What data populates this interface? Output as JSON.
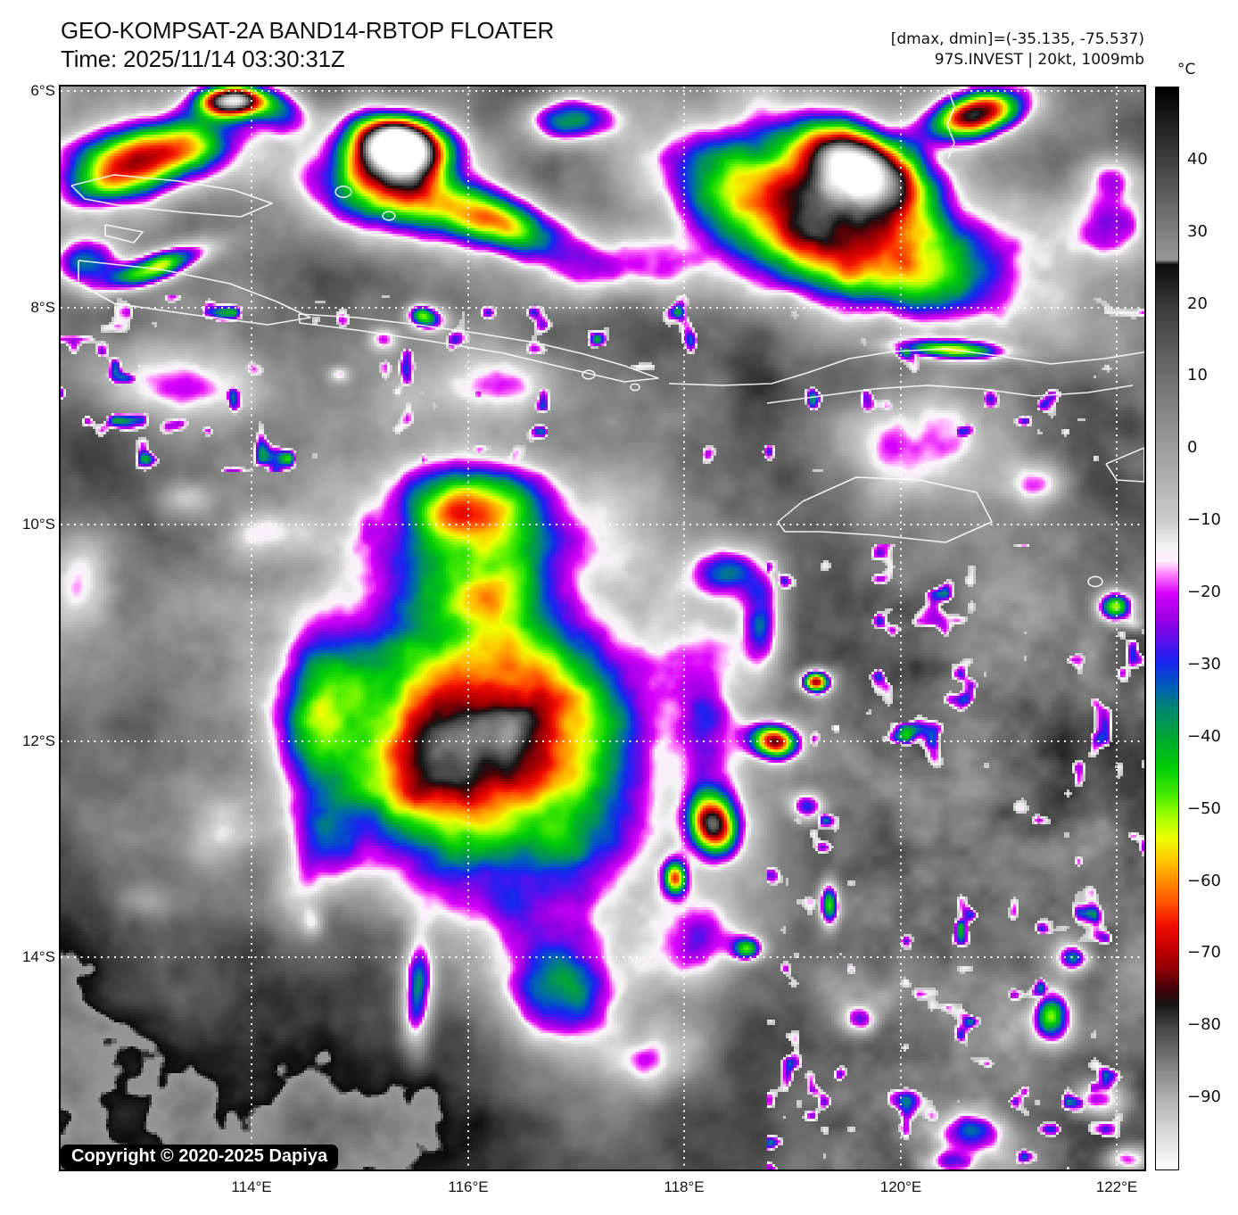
{
  "header": {
    "title": "GEO-KOMPSAT-2A BAND14-RBTOP FLOATER",
    "time_line": "Time: 2025/11/14 03:30:31Z",
    "dminmax_line": "[dmax, dmin]=(-35.135, -75.537)",
    "storm_line": "97S.INVEST | 20kt, 1009mb"
  },
  "map": {
    "copyright": "Copyright © 2020-2025 Dapiya"
  },
  "axes": {
    "lat": [
      "6°S",
      "8°S",
      "10°S",
      "12°S",
      "14°S"
    ],
    "lon": [
      "114°E",
      "116°E",
      "118°E",
      "120°E",
      "122°E"
    ]
  },
  "colorbar": {
    "unit": "°C",
    "ticks": [
      40,
      30,
      20,
      10,
      0,
      -10,
      -20,
      -30,
      -40,
      -50,
      -60,
      -70,
      -80,
      -90
    ],
    "domain": [
      50,
      -100
    ],
    "palette_stops": [
      [
        50,
        0,
        0,
        0
      ],
      [
        27,
        148,
        148,
        148
      ],
      [
        26.2,
        150,
        150,
        150
      ],
      [
        25.6,
        12,
        12,
        12
      ],
      [
        20,
        58,
        58,
        58
      ],
      [
        10,
        112,
        112,
        112
      ],
      [
        0,
        158,
        158,
        158
      ],
      [
        -10,
        205,
        205,
        205
      ],
      [
        -13.5,
        242,
        242,
        242
      ],
      [
        -15.5,
        255,
        240,
        255
      ],
      [
        -17.5,
        255,
        120,
        255
      ],
      [
        -20,
        215,
        0,
        252
      ],
      [
        -23.5,
        158,
        0,
        228
      ],
      [
        -26.5,
        92,
        15,
        235
      ],
      [
        -29.5,
        25,
        35,
        240
      ],
      [
        -33,
        0,
        95,
        185
      ],
      [
        -36,
        0,
        135,
        115
      ],
      [
        -40,
        0,
        168,
        50
      ],
      [
        -44,
        0,
        205,
        10
      ],
      [
        -48,
        70,
        235,
        0
      ],
      [
        -51,
        165,
        255,
        0
      ],
      [
        -54,
        238,
        255,
        0
      ],
      [
        -57,
        255,
        200,
        0
      ],
      [
        -60,
        255,
        140,
        0
      ],
      [
        -63,
        255,
        80,
        0
      ],
      [
        -66,
        242,
        15,
        0
      ],
      [
        -69,
        200,
        0,
        0
      ],
      [
        -72,
        148,
        0,
        5
      ],
      [
        -75,
        66,
        5,
        8
      ],
      [
        -77,
        22,
        20,
        20
      ],
      [
        -80,
        68,
        68,
        68
      ],
      [
        -85,
        122,
        122,
        122
      ],
      [
        -90,
        176,
        176,
        176
      ],
      [
        -95,
        220,
        220,
        220
      ],
      [
        -100,
        255,
        255,
        255
      ]
    ]
  }
}
